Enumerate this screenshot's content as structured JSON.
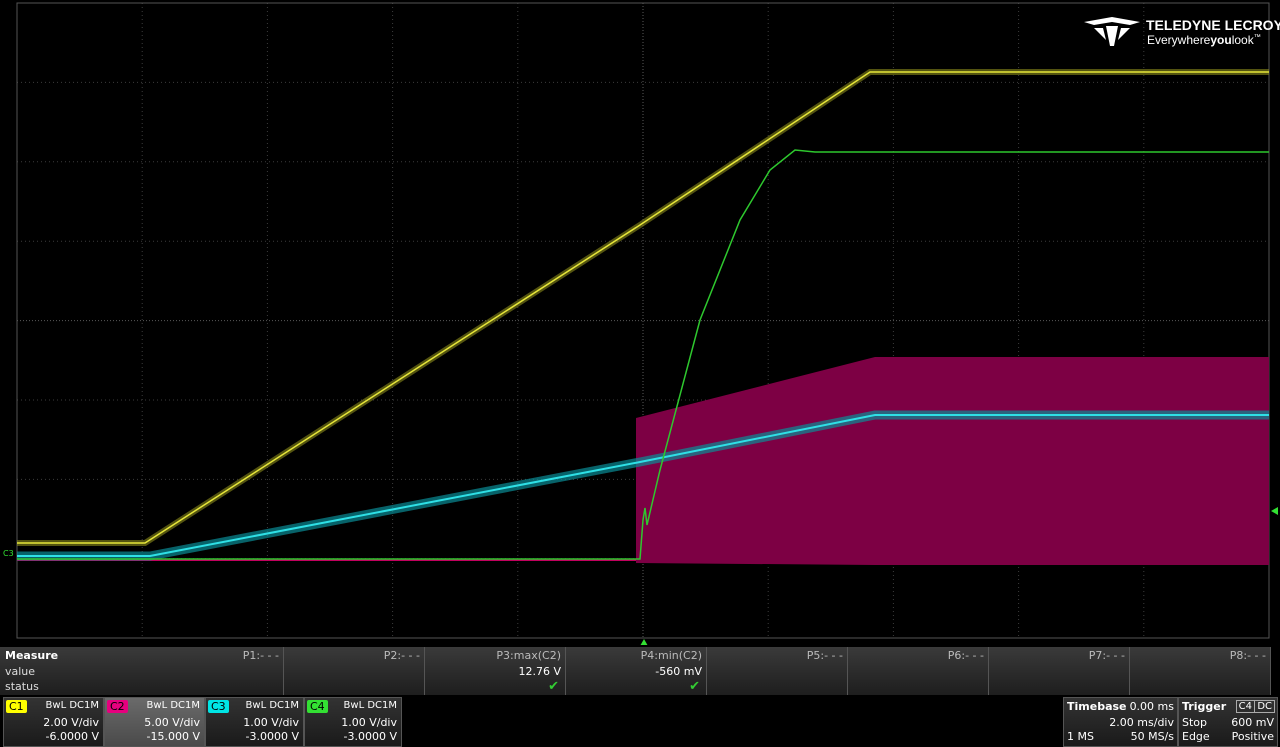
{
  "logo": {
    "brand": "TELEDYNE LECROY",
    "tagline": [
      "Everywhere",
      "you",
      "look",
      "™"
    ]
  },
  "measure": {
    "title": "Measure",
    "row_labels": [
      "value",
      "status"
    ],
    "params": [
      {
        "name": "P1:- - -"
      },
      {
        "name": "P2:- - -"
      },
      {
        "name": "P3:max(C2)",
        "value": "12.76 V"
      },
      {
        "name": "P4:min(C2)",
        "value": "-560 mV"
      },
      {
        "name": "P5:- - -"
      },
      {
        "name": "P6:- - -"
      },
      {
        "name": "P7:- - -"
      },
      {
        "name": "P8:- - -"
      }
    ]
  },
  "channels": [
    {
      "id": "C1",
      "coupling": "BwL  DC1M",
      "scale": "2.00 V/div",
      "offset": "-6.0000 V",
      "color": "#ffff00"
    },
    {
      "id": "C2",
      "coupling": "BwL  DC1M",
      "scale": "5.00 V/div",
      "offset": "-15.000 V",
      "color": "#e6007e"
    },
    {
      "id": "C3",
      "coupling": "BwL  DC1M",
      "scale": "1.00 V/div",
      "offset": "-3.0000 V",
      "color": "#00e5e5"
    },
    {
      "id": "C4",
      "coupling": "BwL  DC1M",
      "scale": "1.00 V/div",
      "offset": "-3.0000 V",
      "color": "#33e033"
    }
  ],
  "timebase": {
    "title": "Timebase",
    "delay": "0.00 ms",
    "scale": "2.00 ms/div",
    "samples": "1 MS",
    "rate": "50 MS/s"
  },
  "trigger": {
    "title": "Trigger",
    "source": "C4",
    "coupling": "DC",
    "mode": "Stop",
    "level": "600 mV",
    "type": "Edge",
    "slope": "Positive"
  }
}
